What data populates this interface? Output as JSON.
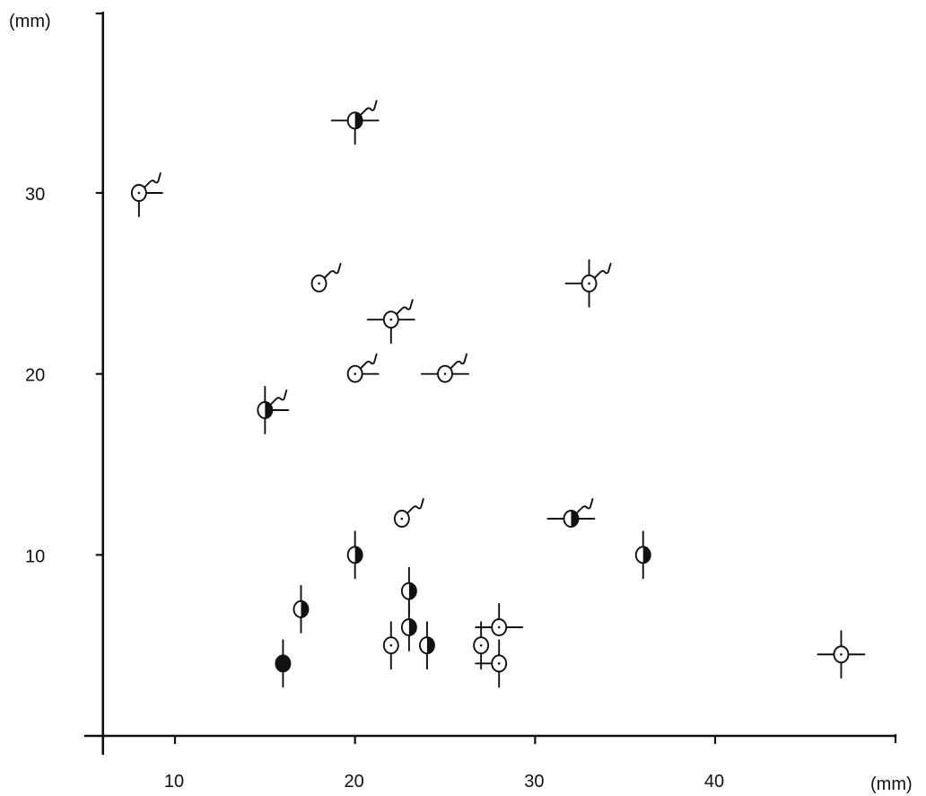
{
  "chart_data": {
    "type": "scatter",
    "title": "",
    "xlabel": "(mm)",
    "ylabel": "(mm)",
    "xlim": [
      6,
      48
    ],
    "ylim": [
      0,
      40
    ],
    "xticks": [
      10,
      20,
      30,
      40
    ],
    "yticks": [
      10,
      20,
      30
    ],
    "grid": false,
    "legend": "none",
    "marker_style": "circle glyphs with oriented line segments (metroglyph-style), some with a curly tail",
    "points": [
      {
        "x": 8,
        "y": 30,
        "fill": "open",
        "rays": [
          "ne_curl",
          "e",
          "s"
        ]
      },
      {
        "x": 20,
        "y": 34,
        "fill": "half",
        "rays": [
          "ne_curl",
          "e",
          "w",
          "s"
        ]
      },
      {
        "x": 18,
        "y": 25,
        "fill": "open",
        "rays": [
          "ne_curl"
        ]
      },
      {
        "x": 22,
        "y": 23,
        "fill": "open",
        "rays": [
          "ne_curl",
          "e",
          "w",
          "s"
        ]
      },
      {
        "x": 33,
        "y": 25,
        "fill": "open",
        "rays": [
          "ne_curl",
          "w",
          "s",
          "n"
        ]
      },
      {
        "x": 20,
        "y": 20,
        "fill": "open",
        "rays": [
          "ne_curl",
          "e"
        ]
      },
      {
        "x": 25,
        "y": 20,
        "fill": "open",
        "rays": [
          "ne_curl",
          "e",
          "w"
        ]
      },
      {
        "x": 15,
        "y": 18,
        "fill": "half",
        "rays": [
          "ne_curl",
          "e",
          "n",
          "s"
        ]
      },
      {
        "x": 22.6,
        "y": 12,
        "fill": "open",
        "rays": [
          "ne_curl"
        ]
      },
      {
        "x": 32,
        "y": 12,
        "fill": "half",
        "rays": [
          "ne_curl",
          "e",
          "w"
        ]
      },
      {
        "x": 20,
        "y": 10,
        "fill": "half",
        "rays": [
          "n",
          "s"
        ]
      },
      {
        "x": 36,
        "y": 10,
        "fill": "half",
        "rays": [
          "n",
          "s"
        ]
      },
      {
        "x": 17,
        "y": 7,
        "fill": "half",
        "rays": [
          "n",
          "s"
        ]
      },
      {
        "x": 23,
        "y": 8,
        "fill": "half",
        "rays": [
          "n",
          "s"
        ]
      },
      {
        "x": 23,
        "y": 6,
        "fill": "half",
        "rays": [
          "n",
          "s"
        ]
      },
      {
        "x": 24,
        "y": 5,
        "fill": "half",
        "rays": [
          "n",
          "s"
        ]
      },
      {
        "x": 22,
        "y": 5,
        "fill": "open",
        "rays": [
          "n",
          "s"
        ]
      },
      {
        "x": 27,
        "y": 5,
        "fill": "open",
        "rays": [
          "n",
          "s"
        ]
      },
      {
        "x": 28,
        "y": 6,
        "fill": "open",
        "rays": [
          "n",
          "e",
          "w"
        ]
      },
      {
        "x": 28,
        "y": 4,
        "fill": "open",
        "rays": [
          "n",
          "s",
          "w"
        ]
      },
      {
        "x": 16,
        "y": 4,
        "fill": "filled",
        "rays": [
          "n",
          "s"
        ]
      },
      {
        "x": 47,
        "y": 4.5,
        "fill": "open",
        "rays": [
          "n",
          "s",
          "e",
          "w"
        ]
      }
    ]
  }
}
